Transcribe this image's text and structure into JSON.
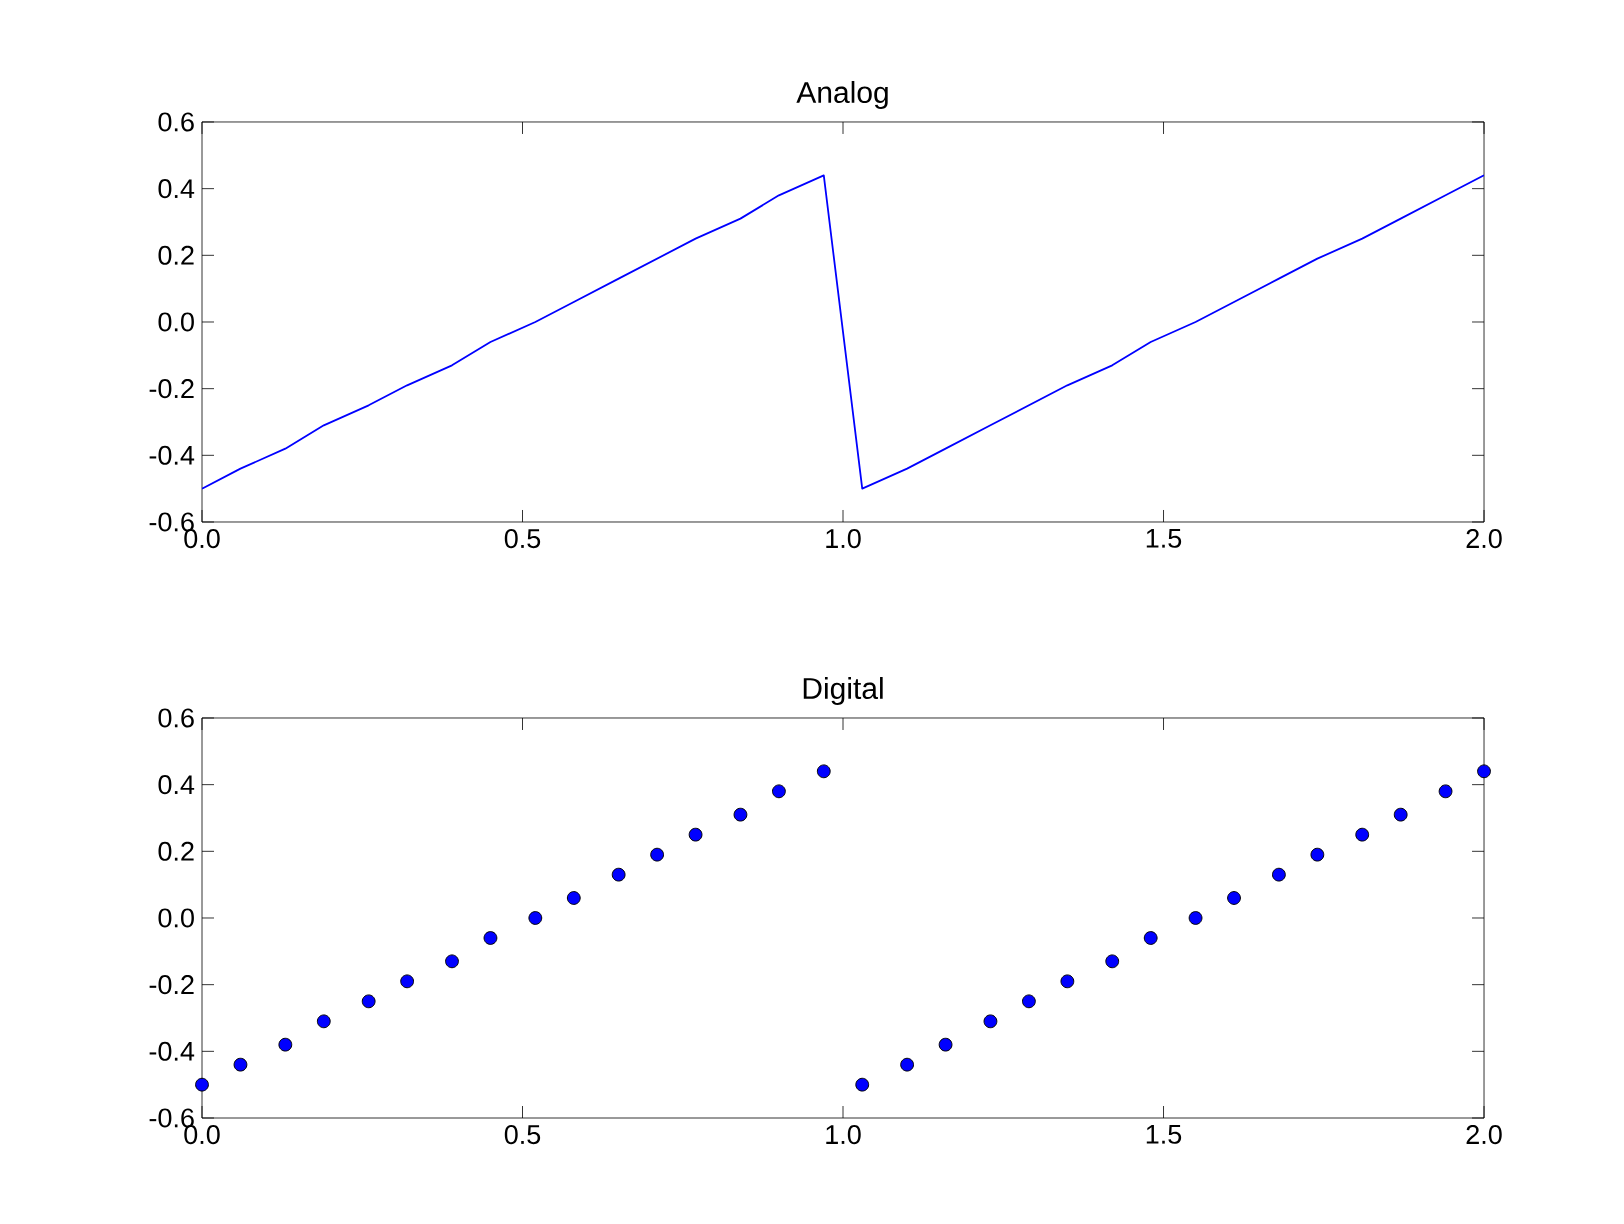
{
  "chart_data": [
    {
      "type": "line",
      "title": "Analog",
      "x": [
        0,
        0.06,
        0.13,
        0.19,
        0.26,
        0.32,
        0.39,
        0.45,
        0.52,
        0.58,
        0.65,
        0.71,
        0.77,
        0.84,
        0.9,
        0.97,
        1.03,
        1.1,
        1.16,
        1.23,
        1.29,
        1.35,
        1.42,
        1.48,
        1.55,
        1.61,
        1.68,
        1.74,
        1.81,
        1.87,
        1.94,
        2
      ],
      "series": [
        {
          "color": "#0000ff",
          "line_style": "solid",
          "marker": "none",
          "values": [
            -0.5,
            -0.44,
            -0.38,
            -0.31,
            -0.25,
            -0.19,
            -0.13,
            -0.06,
            0,
            0.06,
            0.13,
            0.19,
            0.25,
            0.31,
            0.38,
            0.44,
            -0.5,
            -0.44,
            -0.38,
            -0.31,
            -0.25,
            -0.19,
            -0.13,
            -0.06,
            0,
            0.06,
            0.13,
            0.19,
            0.25,
            0.31,
            0.38,
            0.44
          ]
        }
      ],
      "xlim": [
        0,
        2
      ],
      "xticks": [
        {
          "value": 0,
          "label": "0.0"
        },
        {
          "value": 0.5,
          "label": "0.5"
        },
        {
          "value": 1,
          "label": "1.0"
        },
        {
          "value": 1.5,
          "label": "1.5"
        },
        {
          "value": 2,
          "label": "2.0"
        }
      ],
      "ylim": [
        -0.6,
        0.6
      ],
      "yticks": [
        {
          "value": -0.6,
          "label": "-0.6"
        },
        {
          "value": -0.4,
          "label": "-0.4"
        },
        {
          "value": -0.2,
          "label": "-0.2"
        },
        {
          "value": 0,
          "label": "0.0"
        },
        {
          "value": 0.2,
          "label": "0.2"
        },
        {
          "value": 0.4,
          "label": "0.4"
        },
        {
          "value": 0.6,
          "label": "0.6"
        }
      ]
    },
    {
      "type": "scatter",
      "title": "Digital",
      "x": [
        0,
        0.06,
        0.13,
        0.19,
        0.26,
        0.32,
        0.39,
        0.45,
        0.52,
        0.58,
        0.65,
        0.71,
        0.77,
        0.84,
        0.9,
        0.97,
        1.03,
        1.1,
        1.16,
        1.23,
        1.29,
        1.35,
        1.42,
        1.48,
        1.55,
        1.61,
        1.68,
        1.74,
        1.81,
        1.87,
        1.94,
        2
      ],
      "series": [
        {
          "color": "#0000ff",
          "marker": "circle",
          "values": [
            -0.5,
            -0.44,
            -0.38,
            -0.31,
            -0.25,
            -0.19,
            -0.13,
            -0.06,
            0,
            0.06,
            0.13,
            0.19,
            0.25,
            0.31,
            0.38,
            0.44,
            -0.5,
            -0.44,
            -0.38,
            -0.31,
            -0.25,
            -0.19,
            -0.13,
            -0.06,
            0,
            0.06,
            0.13,
            0.19,
            0.25,
            0.31,
            0.38,
            0.44
          ]
        }
      ],
      "xlim": [
        0,
        2
      ],
      "xticks": [
        {
          "value": 0,
          "label": "0.0"
        },
        {
          "value": 0.5,
          "label": "0.5"
        },
        {
          "value": 1,
          "label": "1.0"
        },
        {
          "value": 1.5,
          "label": "1.5"
        },
        {
          "value": 2,
          "label": "2.0"
        }
      ],
      "ylim": [
        -0.6,
        0.6
      ],
      "yticks": [
        {
          "value": -0.6,
          "label": "-0.6"
        },
        {
          "value": -0.4,
          "label": "-0.4"
        },
        {
          "value": -0.2,
          "label": "-0.2"
        },
        {
          "value": 0,
          "label": "0.0"
        },
        {
          "value": 0.2,
          "label": "0.2"
        },
        {
          "value": 0.4,
          "label": "0.4"
        },
        {
          "value": 0.6,
          "label": "0.6"
        }
      ]
    }
  ]
}
